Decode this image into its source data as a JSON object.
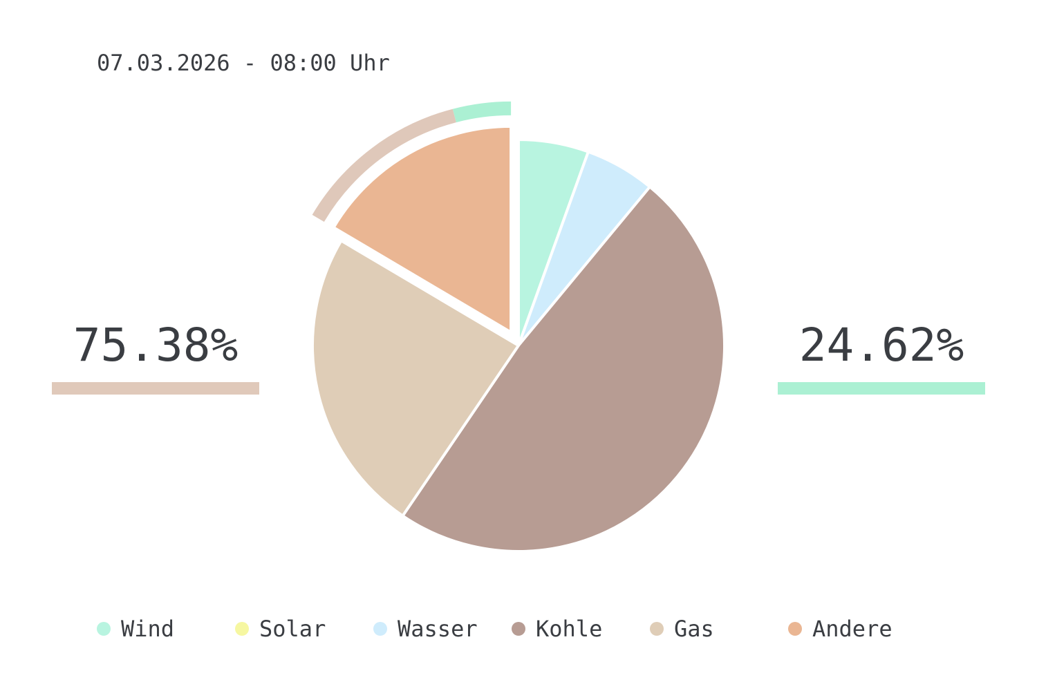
{
  "timestamp": "07.03.2026 - 08:00 Uhr",
  "summary": {
    "left_value": "75.38%",
    "left_color": "#e0c9ba",
    "right_value": "24.62%",
    "right_color": "#abf0d3"
  },
  "chart_data": {
    "type": "pie",
    "categories": [
      "Wind",
      "Solar",
      "Wasser",
      "Kohle",
      "Gas",
      "Andere"
    ],
    "values": [
      5.5,
      0,
      5.5,
      48.5,
      24.0,
      16.5
    ],
    "colors": [
      "#b8f4e0",
      "#f6f7a1",
      "#cfecfc",
      "#b79c93",
      "#dfcdb7",
      "#eab693"
    ],
    "highlight_offset_slice": "Andere",
    "outer_ring": [
      {
        "share": 75.38,
        "color": "#dfc8ba"
      },
      {
        "share": 24.62,
        "color": "#abf0d3"
      }
    ],
    "legend_position": "bottom"
  }
}
